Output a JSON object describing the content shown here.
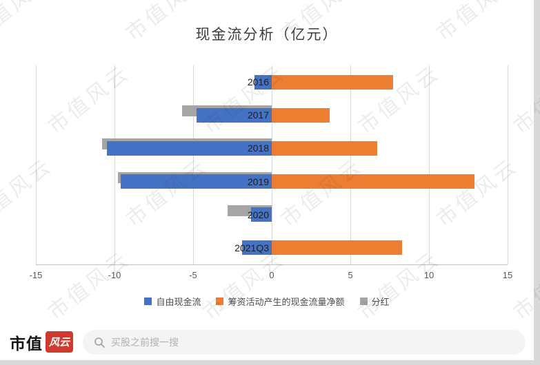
{
  "page": {
    "watermark_text": "市值风云"
  },
  "chart_data": {
    "type": "bar",
    "orientation": "horizontal",
    "title": "现金流分析（亿元）",
    "categories": [
      "2016",
      "2017",
      "2018",
      "2019",
      "2020",
      "2021Q3"
    ],
    "series": [
      {
        "name": "自由现金流",
        "color": "#4472c4",
        "values": [
          -1.1,
          -4.8,
          -10.5,
          -9.6,
          -1.3,
          -1.9
        ]
      },
      {
        "name": "筹资活动产生的现金流量净额",
        "color": "#ed7d31",
        "values": [
          7.7,
          3.7,
          6.7,
          12.9,
          0,
          8.3
        ]
      },
      {
        "name": "分红",
        "color": "#a5a5a5",
        "values": [
          0,
          -5.7,
          -10.8,
          -9.8,
          -2.8,
          0
        ]
      }
    ],
    "xlim": [
      -15,
      15
    ],
    "x_ticks": [
      -15,
      -10,
      -5,
      0,
      5,
      10,
      15
    ],
    "legend_position": "bottom",
    "grid": true
  },
  "footer": {
    "logo_text": "市值",
    "logo_seal_text": "风云",
    "search_placeholder": "买股之前搜一搜"
  }
}
